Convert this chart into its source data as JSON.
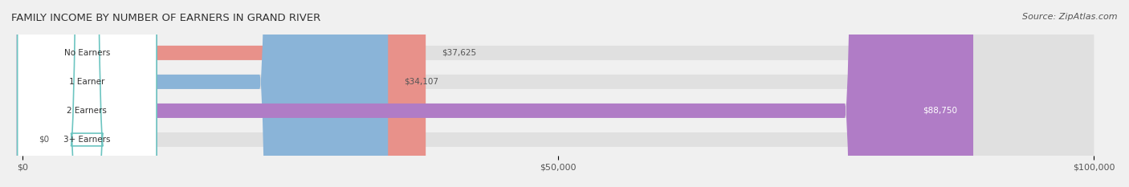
{
  "title": "FAMILY INCOME BY NUMBER OF EARNERS IN GRAND RIVER",
  "source": "Source: ZipAtlas.com",
  "categories": [
    "No Earners",
    "1 Earner",
    "2 Earners",
    "3+ Earners"
  ],
  "values": [
    37625,
    34107,
    88750,
    0
  ],
  "bar_colors": [
    "#e8918a",
    "#8ab4d8",
    "#b07cc6",
    "#6dc5c1"
  ],
  "label_colors": [
    "#e8918a",
    "#8ab4d8",
    "#b07cc6",
    "#6dc5c1"
  ],
  "bg_color": "#f0f0f0",
  "bar_bg_color": "#e8e8e8",
  "xlim": [
    0,
    100000
  ],
  "xticks": [
    0,
    50000,
    100000
  ],
  "xtick_labels": [
    "$0",
    "$50,000",
    "$100,000"
  ]
}
